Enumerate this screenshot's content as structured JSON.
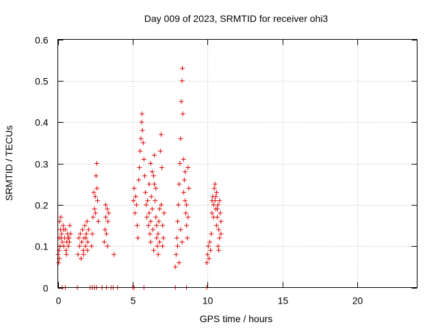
{
  "chart_data": {
    "type": "scatter",
    "title": "Day 009 of 2023, SRMTID for receiver ohi3",
    "xlabel": "GPS time / hours",
    "ylabel": "SRMTID / TECUs",
    "xlim": [
      0,
      24
    ],
    "ylim": [
      0,
      0.6
    ],
    "xticks": [
      0,
      5,
      10,
      15,
      20
    ],
    "xtick_labels": [
      "0",
      "5",
      "10",
      "15",
      "20"
    ],
    "yticks": [
      0,
      0.1,
      0.2,
      0.3,
      0.4,
      0.5,
      0.6
    ],
    "ytick_labels": [
      "0",
      "0.1",
      "0.2",
      "0.3",
      "0.4",
      "0.5",
      "0.6"
    ],
    "grid": true,
    "marker": "+",
    "color": "#e00000",
    "series": [
      {
        "name": "SRMTID",
        "points": [
          [
            0.05,
            0.06
          ],
          [
            0.08,
            0.09
          ],
          [
            0.1,
            0.12
          ],
          [
            0.12,
            0.16
          ],
          [
            0.15,
            0.1
          ],
          [
            0.18,
            0.14
          ],
          [
            0.2,
            0.17
          ],
          [
            0.25,
            0.13
          ],
          [
            0.3,
            0.11
          ],
          [
            0.35,
            0.15
          ],
          [
            0.4,
            0.1
          ],
          [
            0.45,
            0.12
          ],
          [
            0.5,
            0.14
          ],
          [
            0.55,
            0.09
          ],
          [
            0.6,
            0.11
          ],
          [
            0.65,
            0.13
          ],
          [
            0.7,
            0.1
          ],
          [
            0.75,
            0.12
          ],
          [
            0.8,
            0.15
          ],
          [
            0.85,
            0.13
          ],
          [
            0.02,
            0.08
          ],
          [
            0.1,
            0.07
          ],
          [
            0.22,
            0.12
          ],
          [
            0.38,
            0.14
          ],
          [
            0.58,
            0.08
          ],
          [
            0.68,
            0.12
          ],
          [
            0.78,
            0.11
          ],
          [
            1.35,
            0.08
          ],
          [
            1.4,
            0.12
          ],
          [
            1.45,
            0.1
          ],
          [
            1.5,
            0.13
          ],
          [
            1.55,
            0.07
          ],
          [
            1.6,
            0.11
          ],
          [
            1.65,
            0.14
          ],
          [
            1.7,
            0.09
          ],
          [
            1.75,
            0.12
          ],
          [
            1.8,
            0.15
          ],
          [
            1.85,
            0.1
          ],
          [
            1.9,
            0.13
          ],
          [
            1.95,
            0.16
          ],
          [
            2.0,
            0.11
          ],
          [
            2.05,
            0.14
          ],
          [
            1.72,
            0.08
          ],
          [
            1.88,
            0.12
          ],
          [
            1.98,
            0.09
          ],
          [
            2.25,
            0.1
          ],
          [
            2.3,
            0.13
          ],
          [
            2.35,
            0.17
          ],
          [
            2.4,
            0.23
          ],
          [
            2.45,
            0.19
          ],
          [
            2.5,
            0.22
          ],
          [
            2.55,
            0.27
          ],
          [
            2.6,
            0.3
          ],
          [
            2.65,
            0.21
          ],
          [
            2.7,
            0.16
          ],
          [
            2.52,
            0.18
          ],
          [
            2.62,
            0.24
          ],
          [
            3.1,
            0.11
          ],
          [
            3.15,
            0.14
          ],
          [
            3.2,
            0.17
          ],
          [
            3.25,
            0.13
          ],
          [
            3.3,
            0.19
          ],
          [
            3.35,
            0.16
          ],
          [
            3.4,
            0.18
          ],
          [
            3.2,
            0.2
          ],
          [
            3.32,
            0.1
          ],
          [
            3.75,
            0.08
          ],
          [
            5.05,
            0.21
          ],
          [
            5.1,
            0.24
          ],
          [
            5.15,
            0.18
          ],
          [
            5.2,
            0.22
          ],
          [
            5.25,
            0.2
          ],
          [
            5.3,
            0.15
          ],
          [
            5.35,
            0.12
          ],
          [
            5.4,
            0.26
          ],
          [
            5.45,
            0.29
          ],
          [
            5.5,
            0.33
          ],
          [
            5.55,
            0.36
          ],
          [
            5.6,
            0.4
          ],
          [
            5.62,
            0.42
          ],
          [
            5.65,
            0.38
          ],
          [
            5.7,
            0.35
          ],
          [
            5.75,
            0.31
          ],
          [
            5.8,
            0.27
          ],
          [
            5.85,
            0.23
          ],
          [
            5.9,
            0.2
          ],
          [
            5.95,
            0.17
          ],
          [
            6.0,
            0.21
          ],
          [
            6.05,
            0.15
          ],
          [
            6.1,
            0.18
          ],
          [
            6.15,
            0.13
          ],
          [
            6.2,
            0.16
          ],
          [
            6.25,
            0.22
          ],
          [
            6.3,
            0.19
          ],
          [
            6.35,
            0.14
          ],
          [
            6.4,
            0.27
          ],
          [
            6.45,
            0.25
          ],
          [
            6.5,
            0.21
          ],
          [
            6.55,
            0.17
          ],
          [
            6.6,
            0.12
          ],
          [
            6.65,
            0.1
          ],
          [
            6.7,
            0.13
          ],
          [
            6.75,
            0.16
          ],
          [
            6.8,
            0.19
          ],
          [
            6.85,
            0.33
          ],
          [
            6.9,
            0.37
          ],
          [
            6.95,
            0.29
          ],
          [
            6.1,
            0.25
          ],
          [
            6.2,
            0.3
          ],
          [
            6.3,
            0.28
          ],
          [
            6.45,
            0.32
          ],
          [
            6.55,
            0.24
          ],
          [
            6.7,
            0.08
          ],
          [
            6.8,
            0.11
          ],
          [
            7.0,
            0.15
          ],
          [
            7.05,
            0.12
          ],
          [
            7.1,
            0.18
          ],
          [
            6.2,
            0.11
          ],
          [
            6.4,
            0.09
          ],
          [
            6.6,
            0.15
          ],
          [
            6.9,
            0.2
          ],
          [
            7.0,
            0.1
          ],
          [
            7.85,
            0.05
          ],
          [
            7.9,
            0.08
          ],
          [
            7.95,
            0.12
          ],
          [
            8.0,
            0.16
          ],
          [
            8.05,
            0.2
          ],
          [
            8.1,
            0.25
          ],
          [
            8.15,
            0.3
          ],
          [
            8.2,
            0.36
          ],
          [
            8.25,
            0.45
          ],
          [
            8.3,
            0.5
          ],
          [
            8.32,
            0.53
          ],
          [
            8.35,
            0.42
          ],
          [
            8.4,
            0.31
          ],
          [
            8.45,
            0.26
          ],
          [
            8.5,
            0.21
          ],
          [
            8.55,
            0.18
          ],
          [
            8.6,
            0.15
          ],
          [
            8.65,
            0.12
          ],
          [
            8.7,
            0.29
          ],
          [
            8.75,
            0.24
          ],
          [
            8.0,
            0.1
          ],
          [
            8.2,
            0.14
          ],
          [
            8.4,
            0.23
          ],
          [
            8.5,
            0.28
          ],
          [
            8.6,
            0.2
          ],
          [
            8.7,
            0.17
          ],
          [
            8.1,
            0.06
          ],
          [
            8.3,
            0.11
          ],
          [
            9.95,
            0.06
          ],
          [
            10.0,
            0.08
          ],
          [
            10.05,
            0.1
          ],
          [
            10.1,
            0.07
          ],
          [
            10.15,
            0.11
          ],
          [
            10.2,
            0.09
          ],
          [
            10.25,
            0.13
          ],
          [
            10.3,
            0.18
          ],
          [
            10.35,
            0.22
          ],
          [
            10.4,
            0.2
          ],
          [
            10.45,
            0.24
          ],
          [
            10.5,
            0.21
          ],
          [
            10.55,
            0.19
          ],
          [
            10.6,
            0.23
          ],
          [
            10.65,
            0.17
          ],
          [
            10.7,
            0.2
          ],
          [
            10.75,
            0.14
          ],
          [
            10.8,
            0.12
          ],
          [
            10.85,
            0.18
          ],
          [
            10.9,
            0.16
          ],
          [
            10.4,
            0.17
          ],
          [
            10.5,
            0.25
          ],
          [
            10.6,
            0.15
          ],
          [
            10.7,
            0.1
          ],
          [
            10.8,
            0.21
          ],
          [
            10.9,
            0.13
          ],
          [
            10.55,
            0.22
          ],
          [
            10.65,
            0.19
          ],
          [
            10.75,
            0.09
          ],
          [
            10.3,
            0.21
          ],
          [
            0.3,
            0.0
          ],
          [
            0.5,
            0.0
          ],
          [
            1.3,
            0.0
          ],
          [
            2.15,
            0.0
          ],
          [
            2.3,
            0.0
          ],
          [
            2.45,
            0.0
          ],
          [
            2.6,
            0.0
          ],
          [
            2.95,
            0.0
          ],
          [
            3.25,
            0.0
          ],
          [
            3.55,
            0.0
          ],
          [
            3.7,
            0.0
          ],
          [
            4.0,
            0.0
          ],
          [
            5.0,
            0.0
          ],
          [
            5.1,
            0.0
          ],
          [
            5.75,
            0.0
          ],
          [
            7.85,
            0.0
          ],
          [
            8.6,
            0.0
          ],
          [
            9.95,
            0.0
          ]
        ]
      }
    ]
  }
}
